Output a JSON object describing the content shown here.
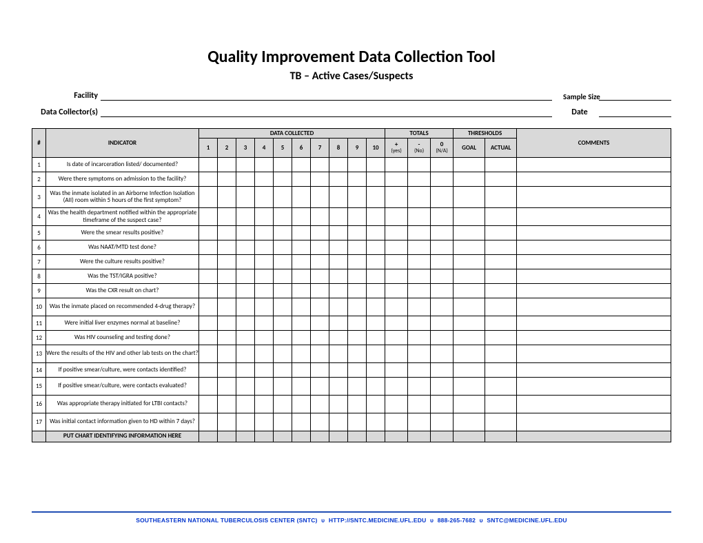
{
  "title": "Quality Improvement Data Collection Tool",
  "subtitle": "TB – Active Cases/Suspects",
  "form": {
    "facility_label": "Facility",
    "sample_size_label": "Sample Size",
    "collectors_label": "Data Collector(s)",
    "date_label": "Date"
  },
  "table": {
    "header": {
      "num": "#",
      "indicator": "INDICATOR",
      "data_collected": "DATA COLLECTED",
      "totals": "TOTALS",
      "thresholds": "THRESHOLDS",
      "comments": "COMMENTS",
      "dc_cols": [
        "1",
        "2",
        "3",
        "4",
        "5",
        "6",
        "7",
        "8",
        "9",
        "10"
      ],
      "tot_plus": "+",
      "tot_plus_sub": "(yes)",
      "tot_minus": "-",
      "tot_minus_sub": "(No)",
      "tot_zero": "0",
      "tot_zero_sub": "(N/A)",
      "goal": "GOAL",
      "actual": "ACTUAL"
    },
    "rows": [
      {
        "n": "1",
        "text": "Is date of incarceration listed/ documented?",
        "h": ""
      },
      {
        "n": "2",
        "text": "Were there symptoms on admission to the facility?",
        "h": ""
      },
      {
        "n": "3",
        "text": "Was the inmate isolated in an Airborne Infection Isolation (AII) room within 5 hours of the first symptom?",
        "h": "tall"
      },
      {
        "n": "4",
        "text": "Was the health department notified within the appropriate timeframe of the suspect case?",
        "h": "med"
      },
      {
        "n": "5",
        "text": "Were the smear results positive?",
        "h": ""
      },
      {
        "n": "6",
        "text": "Was NAAT/MTD test done?",
        "h": ""
      },
      {
        "n": "7",
        "text": "Were the culture results positive?",
        "h": ""
      },
      {
        "n": "8",
        "text": "Was the TST/IGRA positive?",
        "h": ""
      },
      {
        "n": "9",
        "text": "Was the CXR result on chart?",
        "h": ""
      },
      {
        "n": "10",
        "text": "Was the inmate placed on recommended 4-drug therapy?",
        "h": "med"
      },
      {
        "n": "11",
        "text": "Were initial liver enzymes normal at baseline?",
        "h": ""
      },
      {
        "n": "12",
        "text": "Was HIV counseling and testing done?",
        "h": ""
      },
      {
        "n": "13",
        "text": "Were the results of the HIV and other lab tests on the chart?",
        "h": "med"
      },
      {
        "n": "14",
        "text": "If positive smear/culture, were contacts identified?",
        "h": ""
      },
      {
        "n": "15",
        "text": "If positive smear/culture, were contacts evaluated?",
        "h": "med"
      },
      {
        "n": "16",
        "text": "Was appropriate therapy initiated for LTBI contacts?",
        "h": "med"
      },
      {
        "n": "17",
        "text": "Was initial contact information given to HD within 7 days?",
        "h": "med"
      }
    ],
    "footer_row": "PUT CHART IDENTIFYING INFORMATION HERE"
  },
  "footer": {
    "org": "SOUTHEASTERN NATIONAL TUBERCULOSIS CENTER (SNTC)",
    "url": "HTTP://SNTC.MEDICINE.UFL.EDU",
    "phone": "888-265-7682",
    "email": "SNTC@MEDICINE.UFL.EDU",
    "sep": "υ"
  },
  "colors": {
    "header_bg": "#d9d9d9",
    "footer_line": "#1f4db3",
    "footer_text": "#0033cc"
  }
}
